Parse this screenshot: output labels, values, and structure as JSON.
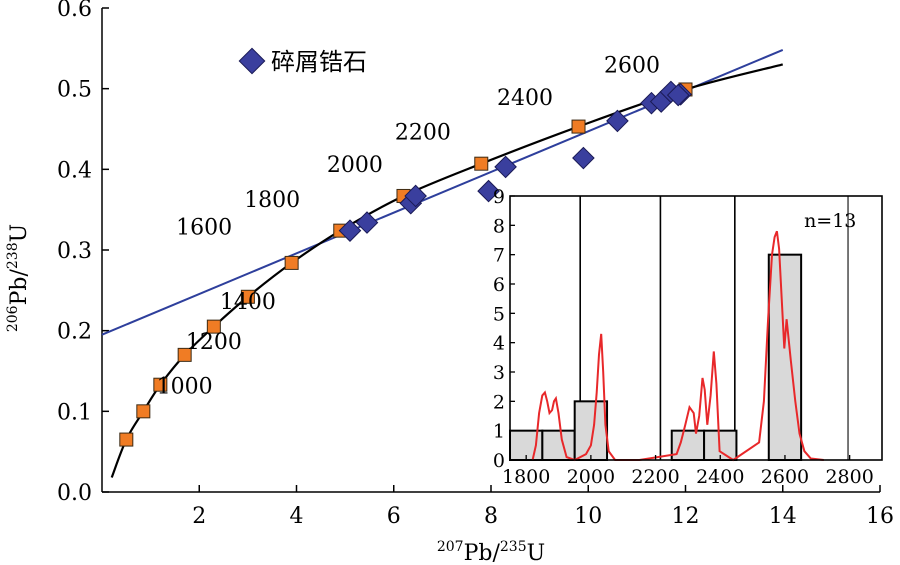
{
  "chart_data": [
    {
      "type": "scatter",
      "xlabel": "207Pb/235U",
      "ylabel": "206Pb/238U",
      "xlim": [
        0,
        16
      ],
      "ylim": [
        0,
        0.6
      ],
      "x_ticks": [
        "2",
        "4",
        "6",
        "8",
        "10",
        "12",
        "14",
        "16"
      ],
      "y_ticks": [
        "0.0",
        "0.1",
        "0.2",
        "0.3",
        "0.4",
        "0.5",
        "0.6"
      ],
      "legend": {
        "label": "碎屑锆石",
        "marker": "diamond",
        "color": "#3a3f9e",
        "placement": "top-left"
      },
      "concordia": {
        "color": "#000000",
        "points": [
          [
            0.2,
            0.018
          ],
          [
            0.5,
            0.065
          ],
          [
            0.85,
            0.1
          ],
          [
            1.2,
            0.133
          ],
          [
            1.7,
            0.17
          ],
          [
            2.3,
            0.205
          ],
          [
            3.0,
            0.242
          ],
          [
            3.9,
            0.284
          ],
          [
            4.9,
            0.324
          ],
          [
            6.2,
            0.367
          ],
          [
            7.8,
            0.407
          ],
          [
            9.8,
            0.453
          ],
          [
            12.0,
            0.499
          ],
          [
            14.0,
            0.53
          ]
        ],
        "age_markers": [
          {
            "x": 0.5,
            "y": 0.065
          },
          {
            "x": 0.85,
            "y": 0.1
          },
          {
            "x": 1.2,
            "y": 0.133
          },
          {
            "x": 1.7,
            "y": 0.17
          },
          {
            "x": 2.3,
            "y": 0.205
          },
          {
            "x": 3.0,
            "y": 0.242
          },
          {
            "x": 3.9,
            "y": 0.284
          },
          {
            "x": 4.9,
            "y": 0.324
          },
          {
            "x": 6.2,
            "y": 0.367
          },
          {
            "x": 7.8,
            "y": 0.407
          },
          {
            "x": 9.8,
            "y": 0.453
          },
          {
            "x": 12.0,
            "y": 0.499
          }
        ],
        "marker_color": "#f07c24",
        "age_labels": [
          {
            "text": "1000",
            "x": 1.7,
            "y": 0.122
          },
          {
            "text": "1200",
            "x": 2.3,
            "y": 0.177
          },
          {
            "text": "1400",
            "x": 3.0,
            "y": 0.227
          },
          {
            "text": "1600",
            "x": 2.1,
            "y": 0.319
          },
          {
            "text": "1800",
            "x": 3.5,
            "y": 0.353
          },
          {
            "text": "2000",
            "x": 5.2,
            "y": 0.397
          },
          {
            "text": "2200",
            "x": 6.6,
            "y": 0.437
          },
          {
            "text": "2400",
            "x": 8.7,
            "y": 0.48
          },
          {
            "text": "2600",
            "x": 10.9,
            "y": 0.52
          }
        ]
      },
      "discordia": {
        "color": "#2e3f9c",
        "x": [
          0,
          14.0
        ],
        "y": [
          0.195,
          0.548
        ]
      },
      "series": [
        {
          "name": "碎屑锆石",
          "color": "#3a3f9e",
          "marker": "diamond",
          "points": [
            {
              "x": 5.1,
              "y": 0.324
            },
            {
              "x": 5.45,
              "y": 0.334
            },
            {
              "x": 6.35,
              "y": 0.358
            },
            {
              "x": 6.45,
              "y": 0.367
            },
            {
              "x": 7.95,
              "y": 0.373
            },
            {
              "x": 8.3,
              "y": 0.403
            },
            {
              "x": 9.9,
              "y": 0.414
            },
            {
              "x": 10.6,
              "y": 0.46
            },
            {
              "x": 11.3,
              "y": 0.482
            },
            {
              "x": 11.5,
              "y": 0.484
            },
            {
              "x": 11.7,
              "y": 0.496
            },
            {
              "x": 11.9,
              "y": 0.493
            },
            {
              "x": 11.85,
              "y": 0.492
            }
          ]
        }
      ]
    },
    {
      "type": "bar",
      "annotation": "n=13",
      "xlim": [
        1750,
        2900
      ],
      "ylim": [
        0,
        9
      ],
      "x_ticks": [
        "1800",
        "2000",
        "2200",
        "2400",
        "2600",
        "2800"
      ],
      "y_ticks": [
        "0",
        "1",
        "2",
        "3",
        "4",
        "5",
        "6",
        "7",
        "8",
        "9"
      ],
      "bins": [
        {
          "start": 1750,
          "end": 1850,
          "count": 1
        },
        {
          "start": 1850,
          "end": 1950,
          "count": 1
        },
        {
          "start": 1950,
          "end": 2050,
          "count": 2
        },
        {
          "start": 2250,
          "end": 2350,
          "count": 1
        },
        {
          "start": 2350,
          "end": 2450,
          "count": 1
        },
        {
          "start": 2550,
          "end": 2650,
          "count": 7
        }
      ],
      "bar_color": "#d9d9d9",
      "vertical_lines": [
        1967,
        2215,
        2445,
        2795
      ],
      "density_curve": {
        "color": "#e8282a",
        "x": [
          1820,
          1830,
          1840,
          1850,
          1858,
          1865,
          1872,
          1880,
          1886,
          1892,
          1900,
          1910,
          1925,
          1950,
          1985,
          2000,
          2010,
          2018,
          2025,
          2032,
          2038,
          2045,
          2055,
          2075,
          2150,
          2265,
          2278,
          2292,
          2305,
          2318,
          2325,
          2335,
          2345,
          2352,
          2360,
          2370,
          2380,
          2388,
          2398,
          2440,
          2520,
          2535,
          2548,
          2560,
          2568,
          2575,
          2582,
          2590,
          2598,
          2605,
          2618,
          2632,
          2645,
          2660,
          2680,
          2720
        ],
        "y": [
          0,
          0.5,
          1.6,
          2.2,
          2.3,
          2.0,
          1.6,
          1.7,
          2.0,
          2.1,
          1.6,
          0.7,
          0.1,
          0,
          0.2,
          0.5,
          1.2,
          2.3,
          3.6,
          4.3,
          3.0,
          1.2,
          0.3,
          0,
          0,
          0.2,
          0.6,
          1.2,
          1.8,
          1.6,
          0.9,
          1.5,
          2.8,
          2.4,
          1.2,
          2.2,
          3.7,
          2.6,
          0.3,
          0,
          0.6,
          2.0,
          4.8,
          7.0,
          7.6,
          7.8,
          7.2,
          5.5,
          3.8,
          4.8,
          3.4,
          2.0,
          0.9,
          0.3,
          0.05,
          0
        ]
      }
    }
  ]
}
